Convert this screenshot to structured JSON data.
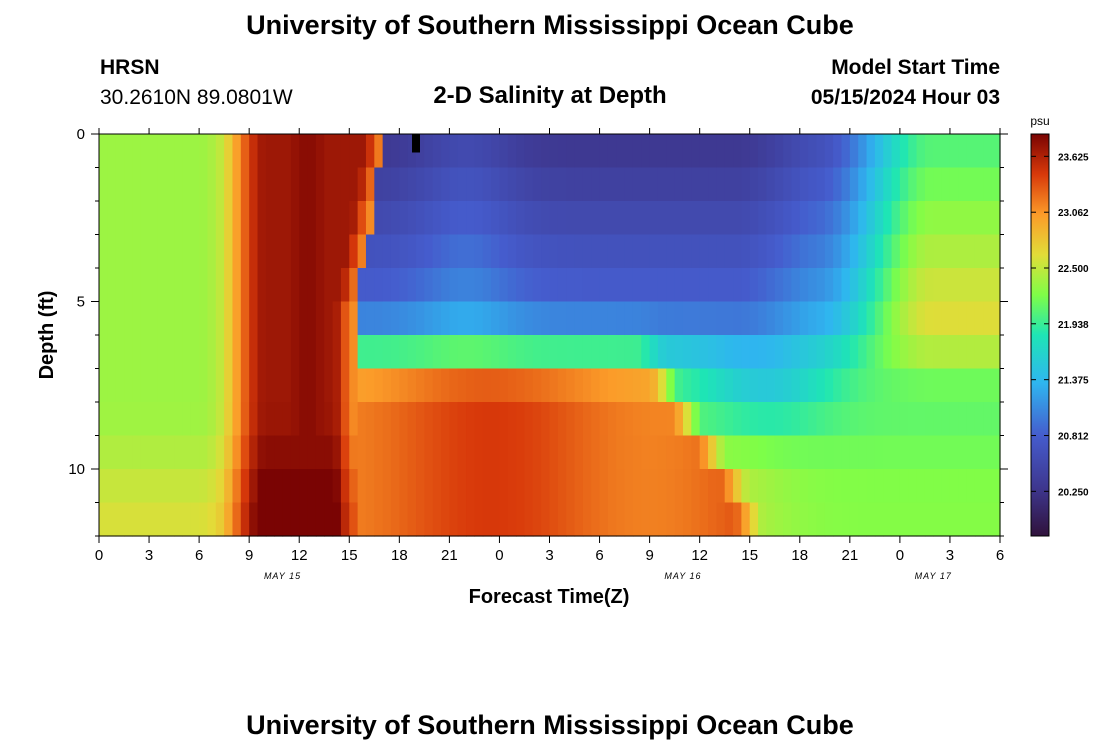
{
  "page": {
    "title": "University of Southern Mississippi Ocean Cube",
    "footer_title": "University of Southern Mississippi Ocean Cube"
  },
  "header": {
    "station": "HRSN",
    "coords": "30.2610N  89.0801W",
    "plot_title": "2-D Salinity at Depth",
    "model_label": "Model Start Time",
    "model_time": "05/15/2024 Hour 03"
  },
  "chart_data": {
    "type": "heatmap",
    "title": "2-D Salinity at Depth",
    "xlabel": "Forecast Time(Z)",
    "ylabel": "Depth (ft)",
    "x_ticks": [
      "0",
      "3",
      "6",
      "9",
      "12",
      "15",
      "18",
      "21",
      "0",
      "3",
      "6",
      "9",
      "12",
      "15",
      "18",
      "21",
      "0",
      "3",
      "6"
    ],
    "date_labels": [
      {
        "label": "MAY 15",
        "hour": 11
      },
      {
        "label": "MAY 16",
        "hour": 35
      },
      {
        "label": "MAY 17",
        "hour": 50
      }
    ],
    "x_range_hours": [
      0,
      54
    ],
    "y_ticks": [
      0,
      5,
      10
    ],
    "y_range_ft": [
      0,
      12
    ],
    "depth_levels_ft": [
      0.5,
      1.5,
      2.5,
      3.5,
      4.5,
      5.5,
      6.5,
      7.5,
      8.5,
      9.5,
      10.5,
      11.5
    ],
    "colorbar": {
      "unit": "psu",
      "ticks": [
        "23.625",
        "23.062",
        "22.500",
        "21.938",
        "21.375",
        "20.812",
        "20.250"
      ],
      "min": 19.8,
      "max": 23.85
    },
    "marker": {
      "hour": 19,
      "depth_ft": 0.5
    }
  }
}
